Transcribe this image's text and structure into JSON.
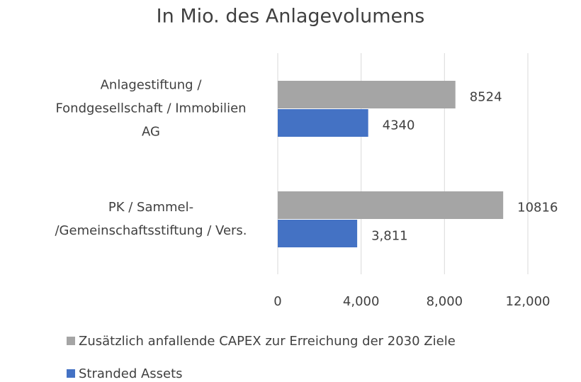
{
  "chart_data": {
    "type": "hbar",
    "title": "In Mio. des Anlagevolumens",
    "categories": [
      "Anlagestiftung /\nFondgesellschaft / Immobilien\nAG",
      "PK / Sammel-\n/Gemeinschaftsstiftung / Vers."
    ],
    "series": [
      {
        "name": "Zusätzlich anfallende CAPEX zur Erreichung der 2030 Ziele",
        "color": "#a5a5a5",
        "values": [
          8524,
          10816
        ]
      },
      {
        "name": "Stranded Assets",
        "color": "#4472c4",
        "values": [
          4340,
          3811
        ],
        "value_labels": [
          "4340",
          "3,811"
        ]
      }
    ],
    "xlim": [
      0,
      12000
    ],
    "xticks": [
      0,
      {
        "value": 4000,
        "label": "4,000"
      },
      {
        "value": 8000,
        "label": "8,000"
      },
      {
        "value": 12000,
        "label": "12,000"
      }
    ],
    "grid": true,
    "legend": "bottom"
  }
}
